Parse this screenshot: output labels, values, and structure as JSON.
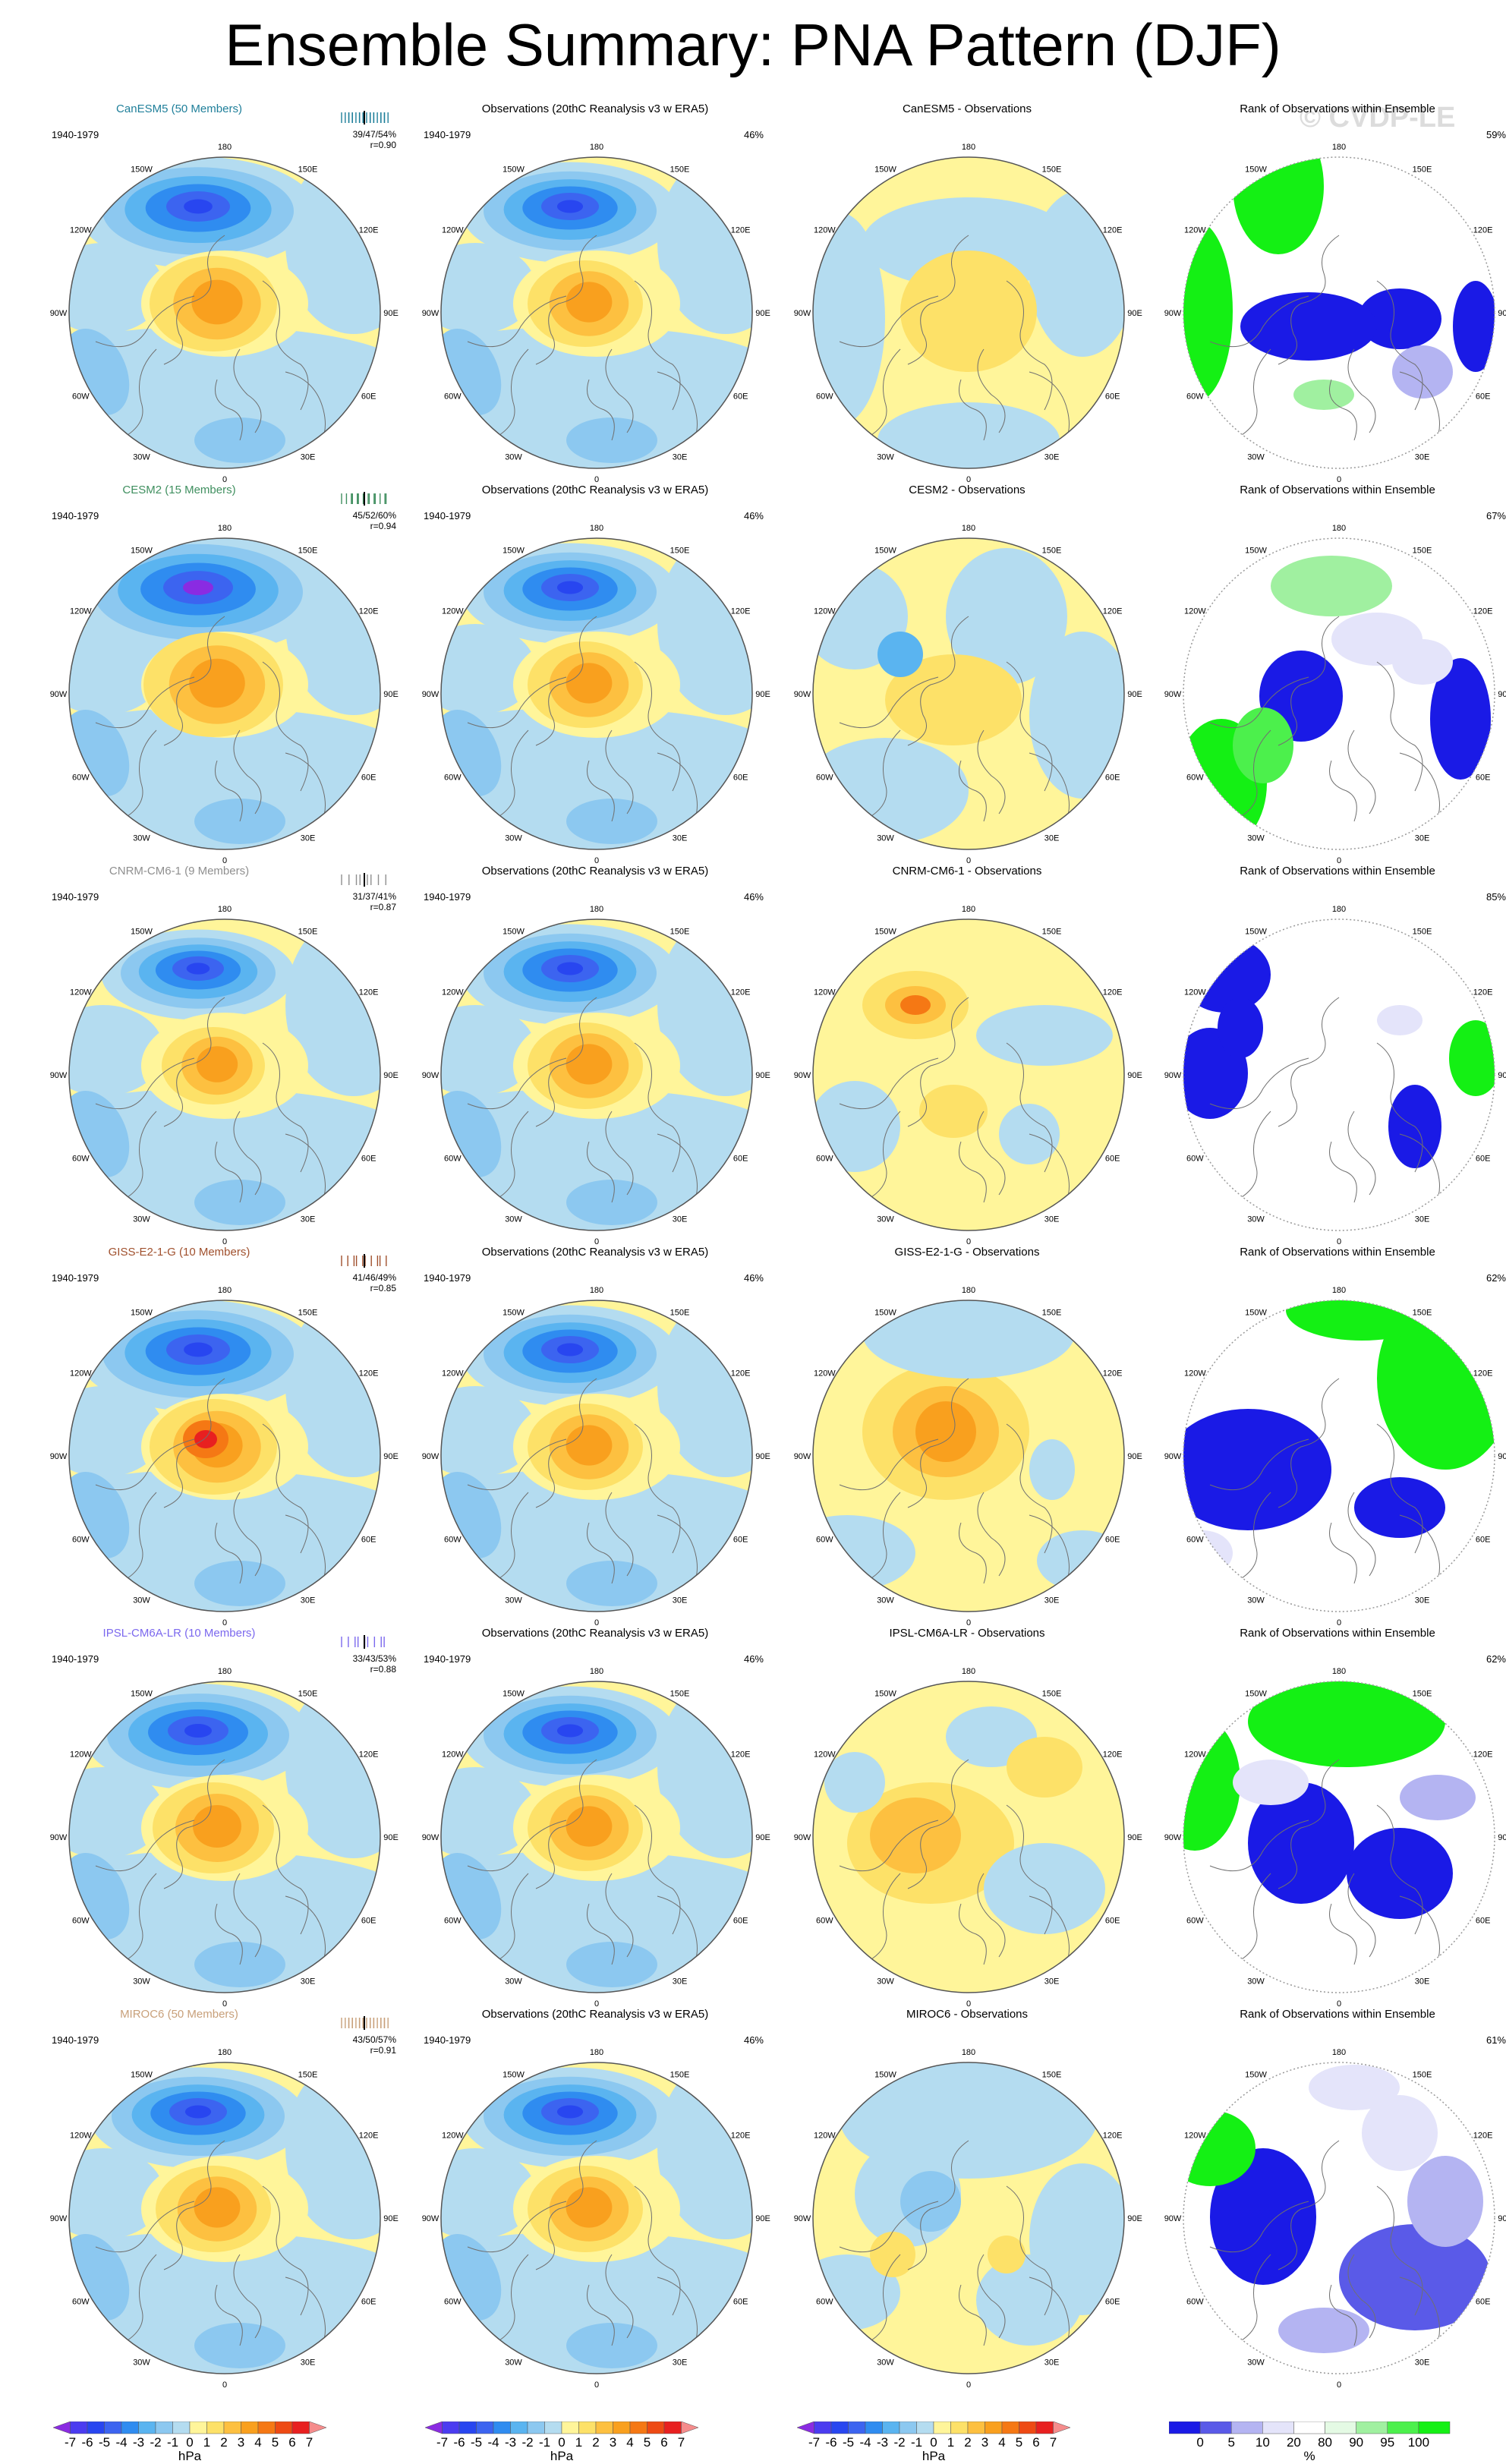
{
  "title": "Ensemble Summary: PNA Pattern (DJF)",
  "watermark": "© CVDP-LE",
  "period": "1940-1979",
  "obs_title": "Observations (20thC Reanalysis v3 w ERA5)",
  "obs_pct": "46%",
  "rank_title": "Rank of Observations within Ensemble",
  "lon_labels": [
    "180",
    "150E",
    "120E",
    "90E",
    "60E",
    "30E",
    "0",
    "30W",
    "60W",
    "90W",
    "120W",
    "150W"
  ],
  "rows": [
    {
      "model": "CanESM5 (50 Members)",
      "color": "#1f7f9a",
      "stats": "39/47/54%",
      "r": "r=0.90",
      "diff_title": "CanESM5 - Observations",
      "rank_pct": "59%"
    },
    {
      "model": "CESM2 (15 Members)",
      "color": "#3f8f5f",
      "stats": "45/52/60%",
      "r": "r=0.94",
      "diff_title": "CESM2 - Observations",
      "rank_pct": "67%"
    },
    {
      "model": "CNRM-CM6-1 (9 Members)",
      "color": "#8f8f8f",
      "stats": "31/37/41%",
      "r": "r=0.87",
      "diff_title": "CNRM-CM6-1 - Observations",
      "rank_pct": "85%"
    },
    {
      "model": "GISS-E2-1-G (10 Members)",
      "color": "#a0502d",
      "stats": "41/46/49%",
      "r": "r=0.85",
      "diff_title": "GISS-E2-1-G - Observations",
      "rank_pct": "62%"
    },
    {
      "model": "IPSL-CM6A-LR (10 Members)",
      "color": "#7b68ee",
      "stats": "33/43/53%",
      "r": "r=0.88",
      "diff_title": "IPSL-CM6A-LR - Observations",
      "rank_pct": "62%"
    },
    {
      "model": "MIROC6 (50 Members)",
      "color": "#c8a07a",
      "stats": "43/50/57%",
      "r": "r=0.91",
      "diff_title": "MIROC6 - Observations",
      "rank_pct": "61%"
    }
  ],
  "colorbar_hpa": {
    "labels": [
      "-7",
      "-6",
      "-5",
      "-4",
      "-3",
      "-2",
      "-1",
      "0",
      "1",
      "2",
      "3",
      "4",
      "5",
      "6",
      "7"
    ],
    "unit": "hPa",
    "colors": [
      "#8a2be2",
      "#4b3cf0",
      "#2846f0",
      "#3c64f0",
      "#2f8cf0",
      "#5ab4f0",
      "#8cc8f0",
      "#b4dcf0",
      "#fff59a",
      "#fde168",
      "#fdc040",
      "#f9a01e",
      "#f57814",
      "#ee4a14",
      "#e82020",
      "#f58c8c"
    ]
  },
  "colorbar_rank": {
    "labels": [
      "0",
      "5",
      "10",
      "20",
      "80",
      "90",
      "95",
      "100"
    ],
    "unit": "%",
    "colors": [
      "#1a1ae6",
      "#5a5ae8",
      "#b4b4f2",
      "#e4e4fa",
      "#ffffff",
      "#e4fae4",
      "#a0f0a0",
      "#4cf04c",
      "#14f014"
    ]
  },
  "chart_data": {
    "type": "heatmap",
    "title": "Ensemble Summary: PNA Pattern (DJF)",
    "period": "1940-1979",
    "units": "hPa",
    "colorbar_range": [
      -7,
      7
    ],
    "models": [
      {
        "name": "CanESM5",
        "members": 50,
        "pattern_corr": 0.9,
        "pct_var": [
          39,
          47,
          54
        ],
        "rank_above_pct": 59
      },
      {
        "name": "CESM2",
        "members": 15,
        "pattern_corr": 0.94,
        "pct_var": [
          45,
          52,
          60
        ],
        "rank_above_pct": 67
      },
      {
        "name": "CNRM-CM6-1",
        "members": 9,
        "pattern_corr": 0.87,
        "pct_var": [
          31,
          37,
          41
        ],
        "rank_above_pct": 85
      },
      {
        "name": "GISS-E2-1-G",
        "members": 10,
        "pattern_corr": 0.85,
        "pct_var": [
          41,
          46,
          49
        ],
        "rank_above_pct": 62
      },
      {
        "name": "IPSL-CM6A-LR",
        "members": 10,
        "pattern_corr": 0.88,
        "pct_var": [
          33,
          43,
          53
        ],
        "rank_above_pct": 62
      },
      {
        "name": "MIROC6",
        "members": 50,
        "pattern_corr": 0.91,
        "pct_var": [
          43,
          50,
          57
        ],
        "rank_above_pct": 61
      }
    ],
    "observations_pct_var": 46
  }
}
